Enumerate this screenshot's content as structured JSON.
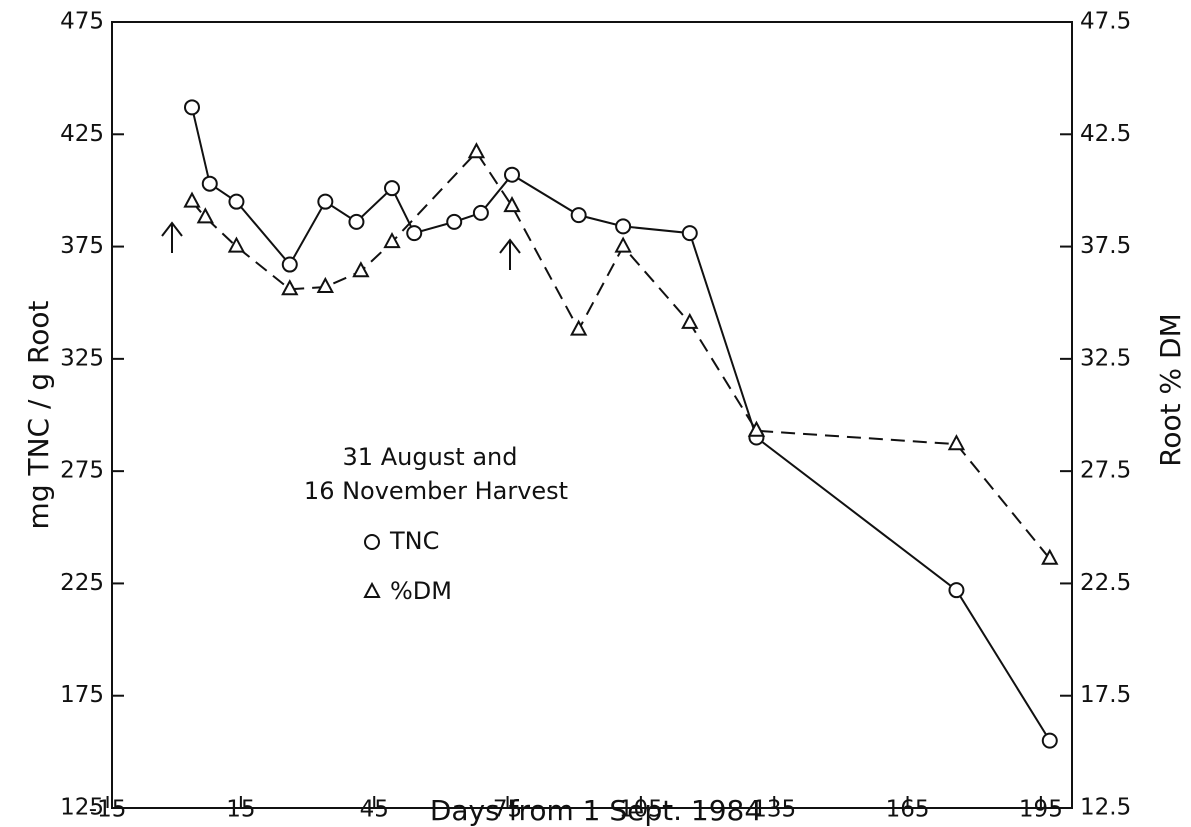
{
  "chart_data": {
    "type": "line",
    "x_label": "Days from 1 Sept. 1984",
    "y_label": "mg TNC / g Root",
    "y2_label": "Root % DM",
    "legend_title": [
      "31 August and",
      "16 November Harvest"
    ],
    "xlim": [
      -14,
      202
    ],
    "xticks": [
      -15,
      15,
      45,
      75,
      105,
      135,
      165,
      195
    ],
    "ylim": [
      125,
      475
    ],
    "yticks": [
      125,
      175,
      225,
      275,
      325,
      375,
      425,
      475
    ],
    "y2lim": [
      12.5,
      47.5
    ],
    "y2ticks": [
      12.5,
      17.5,
      22.5,
      27.5,
      32.5,
      37.5,
      42.5,
      47.5
    ],
    "series": [
      {
        "name": "TNC",
        "color": "#111111",
        "marker": "circle",
        "dash": false,
        "x": [
          4,
          8,
          14,
          26,
          34,
          41,
          49,
          54,
          63,
          69,
          76,
          91,
          101,
          116,
          131,
          176,
          197
        ],
        "values": [
          437,
          403,
          395,
          367,
          395,
          386,
          401,
          381,
          386,
          390,
          407,
          389,
          384,
          381,
          290,
          222,
          155
        ]
      },
      {
        "name": "%DM",
        "color": "#111111",
        "marker": "triangle",
        "dash": true,
        "axis": "y2",
        "x": [
          4,
          7,
          14,
          26,
          34,
          42,
          49,
          68,
          76,
          91,
          101,
          116,
          131,
          176,
          197
        ],
        "values": [
          39.5,
          38.8,
          37.5,
          35.6,
          35.7,
          36.4,
          37.7,
          41.7,
          39.3,
          33.8,
          37.5,
          34.1,
          29.3,
          28.7,
          23.6
        ]
      }
    ]
  }
}
